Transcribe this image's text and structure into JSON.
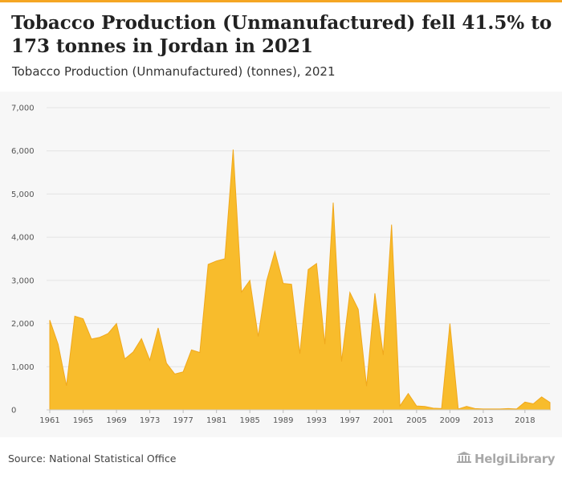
{
  "header": {
    "title": "Tobacco Production (Unmanufactured) fell 41.5% to 173 tonnes in Jordan in 2021",
    "subtitle": "Tobacco Production (Unmanufactured) (tonnes), 2021"
  },
  "footer": {
    "source": "Source: National Statistical Office",
    "logo_text": "HelgiLibrary"
  },
  "colors": {
    "accent": "#f5a623",
    "area_fill": "#f8bc2c",
    "area_stroke": "#f0a81c",
    "plot_background": "#f7f7f7",
    "gridline": "#e4e4e4",
    "axis_text": "#555555"
  },
  "chart_data": {
    "type": "area",
    "title": "Tobacco Production (Unmanufactured) (tonnes), 2021",
    "xlabel": "",
    "ylabel": "",
    "ylim": [
      0,
      7000
    ],
    "y_ticks": [
      "0",
      "1,000",
      "2,000",
      "3,000",
      "4,000",
      "5,000",
      "6,000",
      "7,000"
    ],
    "x_ticks": [
      "1961",
      "1965",
      "1969",
      "1973",
      "1977",
      "1981",
      "1985",
      "1989",
      "1993",
      "1997",
      "2001",
      "2005",
      "2009",
      "2013",
      "2018"
    ],
    "grid": true,
    "legend": "none",
    "x": [
      1961,
      1962,
      1963,
      1964,
      1965,
      1966,
      1967,
      1968,
      1969,
      1970,
      1971,
      1972,
      1973,
      1974,
      1975,
      1976,
      1977,
      1978,
      1979,
      1980,
      1981,
      1982,
      1983,
      1984,
      1985,
      1986,
      1987,
      1988,
      1989,
      1990,
      1991,
      1992,
      1993,
      1994,
      1995,
      1996,
      1997,
      1998,
      1999,
      2000,
      2001,
      2002,
      2003,
      2004,
      2005,
      2006,
      2007,
      2008,
      2009,
      2010,
      2011,
      2012,
      2013,
      2014,
      2015,
      2016,
      2017,
      2018,
      2019,
      2020,
      2021
    ],
    "values": [
      2080,
      1520,
      560,
      2170,
      2110,
      1640,
      1680,
      1770,
      2000,
      1180,
      1340,
      1650,
      1150,
      1900,
      1080,
      830,
      880,
      1390,
      1330,
      3370,
      3450,
      3500,
      6030,
      2730,
      3000,
      1700,
      2980,
      3670,
      2930,
      2910,
      1300,
      3250,
      3390,
      1520,
      4800,
      1120,
      2720,
      2330,
      550,
      2700,
      1270,
      4290,
      90,
      380,
      90,
      80,
      40,
      30,
      2000,
      20,
      80,
      30,
      20,
      20,
      20,
      30,
      20,
      180,
      140,
      300,
      173
    ]
  }
}
